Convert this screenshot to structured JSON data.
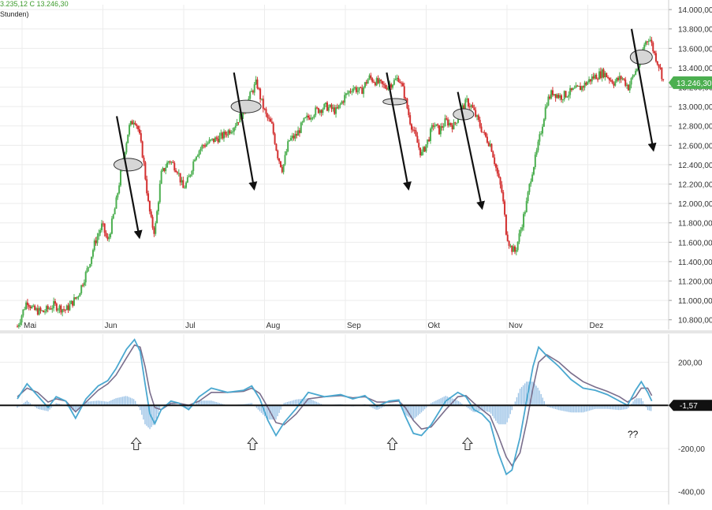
{
  "header": {
    "ohlc_text": "3.235,12  C  13.246,30",
    "interval_text": "Stunden)"
  },
  "colors": {
    "up": "#4caf50",
    "down": "#d32f2f",
    "price_badge": "#4caf50",
    "macd_line": "#4aa8d0",
    "signal_line": "#7a6e8c",
    "histogram": "#9cc3e6",
    "annotation": "#111111",
    "oval_fill": "#d6d6d6"
  },
  "chart_data": [
    {
      "type": "candlestick",
      "name": "price-panel",
      "x_tick_labels": [
        "Mai",
        "Jun",
        "Jul",
        "Aug",
        "Sep",
        "Okt",
        "Nov",
        "Dez"
      ],
      "y_ticks": [
        10800,
        11000,
        11200,
        11400,
        11600,
        11800,
        12000,
        12200,
        12400,
        12600,
        12800,
        13000,
        13200,
        13400,
        13600,
        13800,
        14000
      ],
      "y_tick_labels": [
        "10.800,00",
        "11.000,00",
        "11.200,00",
        "11.400,00",
        "11.600,00",
        "11.800,00",
        "12.000,00",
        "12.200,00",
        "12.400,00",
        "12.600,00",
        "12.800,00",
        "13.000,00",
        "13.200,00",
        "13.400,00",
        "13.600,00",
        "13.800,00",
        "14.000,00"
      ],
      "ylim": [
        10700,
        14050
      ],
      "xlim": [
        0,
        8.55
      ],
      "last_price": 13246.3,
      "last_price_label": "13.246,30",
      "grid": true,
      "series_close": [
        [
          0.0,
          10730
        ],
        [
          0.12,
          11000
        ],
        [
          0.2,
          10900
        ],
        [
          0.32,
          10880
        ],
        [
          0.45,
          10950
        ],
        [
          0.6,
          10900
        ],
        [
          0.75,
          11050
        ],
        [
          0.88,
          11350
        ],
        [
          0.96,
          11600
        ],
        [
          1.05,
          11780
        ],
        [
          1.12,
          11600
        ],
        [
          1.22,
          12000
        ],
        [
          1.3,
          12420
        ],
        [
          1.38,
          12780
        ],
        [
          1.45,
          12880
        ],
        [
          1.5,
          12750
        ],
        [
          1.56,
          12450
        ],
        [
          1.62,
          12000
        ],
        [
          1.66,
          11800
        ],
        [
          1.7,
          11700
        ],
        [
          1.78,
          12300
        ],
        [
          1.88,
          12450
        ],
        [
          1.98,
          12350
        ],
        [
          2.05,
          12150
        ],
        [
          2.12,
          12250
        ],
        [
          2.2,
          12500
        ],
        [
          2.3,
          12600
        ],
        [
          2.42,
          12650
        ],
        [
          2.55,
          12700
        ],
        [
          2.68,
          12800
        ],
        [
          2.8,
          12950
        ],
        [
          2.9,
          13150
        ],
        [
          2.96,
          13250
        ],
        [
          3.02,
          13050
        ],
        [
          3.08,
          12900
        ],
        [
          3.15,
          12800
        ],
        [
          3.22,
          12500
        ],
        [
          3.28,
          12350
        ],
        [
          3.36,
          12650
        ],
        [
          3.45,
          12700
        ],
        [
          3.55,
          12850
        ],
        [
          3.68,
          12950
        ],
        [
          3.82,
          13000
        ],
        [
          3.95,
          12950
        ],
        [
          4.05,
          13100
        ],
        [
          4.15,
          13200
        ],
        [
          4.25,
          13150
        ],
        [
          4.35,
          13300
        ],
        [
          4.45,
          13250
        ],
        [
          4.55,
          13200
        ],
        [
          4.65,
          13250
        ],
        [
          4.72,
          13300
        ],
        [
          4.78,
          13150
        ],
        [
          4.86,
          12850
        ],
        [
          4.92,
          12700
        ],
        [
          5.0,
          12500
        ],
        [
          5.08,
          12650
        ],
        [
          5.15,
          12820
        ],
        [
          5.22,
          12750
        ],
        [
          5.3,
          12850
        ],
        [
          5.4,
          12800
        ],
        [
          5.48,
          12950
        ],
        [
          5.56,
          13050
        ],
        [
          5.62,
          13000
        ],
        [
          5.7,
          12850
        ],
        [
          5.78,
          12700
        ],
        [
          5.86,
          12600
        ],
        [
          5.94,
          12300
        ],
        [
          6.0,
          12100
        ],
        [
          6.05,
          11700
        ],
        [
          6.1,
          11550
        ],
        [
          6.16,
          11500
        ],
        [
          6.22,
          11700
        ],
        [
          6.3,
          12000
        ],
        [
          6.36,
          12300
        ],
        [
          6.42,
          12500
        ],
        [
          6.48,
          12750
        ],
        [
          6.55,
          13050
        ],
        [
          6.62,
          13150
        ],
        [
          6.72,
          13100
        ],
        [
          6.85,
          13150
        ],
        [
          6.98,
          13200
        ],
        [
          7.12,
          13300
        ],
        [
          7.25,
          13350
        ],
        [
          7.38,
          13250
        ],
        [
          7.48,
          13300
        ],
        [
          7.56,
          13200
        ],
        [
          7.64,
          13350
        ],
        [
          7.7,
          13450
        ],
        [
          7.76,
          13650
        ],
        [
          7.82,
          13720
        ],
        [
          7.88,
          13550
        ],
        [
          7.95,
          13400
        ],
        [
          8.0,
          13246
        ]
      ]
    },
    {
      "type": "line",
      "name": "macd-panel",
      "x_tick_labels": [
        "Mai",
        "Jun",
        "Jul",
        "Aug",
        "Sep",
        "Okt",
        "Nov",
        "Dez"
      ],
      "y_ticks": [
        200,
        -200,
        -400
      ],
      "y_tick_labels": [
        "200,00",
        "-200,00",
        "-400,00"
      ],
      "zero_level": 0,
      "ylim": [
        -460,
        330
      ],
      "current_value_label": "-1,57",
      "series": [
        {
          "values": [
            [
              0.0,
              30
            ],
            [
              0.12,
              100
            ],
            [
              0.25,
              45
            ],
            [
              0.38,
              -10
            ],
            [
              0.48,
              40
            ],
            [
              0.6,
              20
            ],
            [
              0.72,
              -60
            ],
            [
              0.85,
              30
            ],
            [
              1.0,
              90
            ],
            [
              1.12,
              115
            ],
            [
              1.22,
              170
            ],
            [
              1.35,
              260
            ],
            [
              1.45,
              305
            ],
            [
              1.52,
              250
            ],
            [
              1.58,
              100
            ],
            [
              1.64,
              -40
            ],
            [
              1.7,
              -85
            ],
            [
              1.78,
              -20
            ],
            [
              1.9,
              20
            ],
            [
              2.0,
              10
            ],
            [
              2.12,
              -20
            ],
            [
              2.25,
              40
            ],
            [
              2.4,
              80
            ],
            [
              2.6,
              60
            ],
            [
              2.8,
              70
            ],
            [
              2.9,
              90
            ],
            [
              3.0,
              30
            ],
            [
              3.1,
              -70
            ],
            [
              3.2,
              -140
            ],
            [
              3.3,
              -80
            ],
            [
              3.45,
              -15
            ],
            [
              3.6,
              60
            ],
            [
              3.8,
              40
            ],
            [
              4.0,
              50
            ],
            [
              4.15,
              30
            ],
            [
              4.3,
              45
            ],
            [
              4.45,
              -5
            ],
            [
              4.6,
              20
            ],
            [
              4.72,
              25
            ],
            [
              4.8,
              -50
            ],
            [
              4.9,
              -130
            ],
            [
              5.0,
              -140
            ],
            [
              5.12,
              -90
            ],
            [
              5.3,
              20
            ],
            [
              5.45,
              60
            ],
            [
              5.55,
              40
            ],
            [
              5.65,
              -20
            ],
            [
              5.75,
              -40
            ],
            [
              5.85,
              -80
            ],
            [
              5.95,
              -220
            ],
            [
              6.05,
              -320
            ],
            [
              6.12,
              -300
            ],
            [
              6.22,
              -150
            ],
            [
              6.3,
              20
            ],
            [
              6.38,
              180
            ],
            [
              6.45,
              270
            ],
            [
              6.55,
              230
            ],
            [
              6.7,
              180
            ],
            [
              6.85,
              120
            ],
            [
              7.0,
              80
            ],
            [
              7.15,
              70
            ],
            [
              7.3,
              50
            ],
            [
              7.45,
              20
            ],
            [
              7.55,
              0
            ],
            [
              7.65,
              70
            ],
            [
              7.72,
              110
            ],
            [
              7.8,
              60
            ],
            [
              7.85,
              20
            ]
          ]
        },
        {
          "values": [
            [
              0.0,
              40
            ],
            [
              0.12,
              80
            ],
            [
              0.25,
              60
            ],
            [
              0.38,
              15
            ],
            [
              0.48,
              30
            ],
            [
              0.6,
              20
            ],
            [
              0.72,
              -30
            ],
            [
              0.85,
              15
            ],
            [
              1.0,
              70
            ],
            [
              1.12,
              100
            ],
            [
              1.22,
              140
            ],
            [
              1.35,
              220
            ],
            [
              1.45,
              280
            ],
            [
              1.52,
              270
            ],
            [
              1.58,
              180
            ],
            [
              1.64,
              60
            ],
            [
              1.7,
              -10
            ],
            [
              1.78,
              -20
            ],
            [
              1.9,
              10
            ],
            [
              2.0,
              10
            ],
            [
              2.12,
              0
            ],
            [
              2.25,
              20
            ],
            [
              2.4,
              60
            ],
            [
              2.6,
              60
            ],
            [
              2.8,
              65
            ],
            [
              2.9,
              80
            ],
            [
              3.0,
              55
            ],
            [
              3.1,
              -10
            ],
            [
              3.2,
              -80
            ],
            [
              3.3,
              -90
            ],
            [
              3.45,
              -40
            ],
            [
              3.6,
              30
            ],
            [
              3.8,
              40
            ],
            [
              4.0,
              45
            ],
            [
              4.15,
              35
            ],
            [
              4.3,
              40
            ],
            [
              4.45,
              15
            ],
            [
              4.6,
              15
            ],
            [
              4.72,
              20
            ],
            [
              4.8,
              -10
            ],
            [
              4.9,
              -70
            ],
            [
              5.0,
              -110
            ],
            [
              5.12,
              -100
            ],
            [
              5.3,
              -20
            ],
            [
              5.45,
              40
            ],
            [
              5.55,
              45
            ],
            [
              5.65,
              10
            ],
            [
              5.75,
              -20
            ],
            [
              5.85,
              -50
            ],
            [
              5.95,
              -140
            ],
            [
              6.05,
              -240
            ],
            [
              6.12,
              -280
            ],
            [
              6.22,
              -220
            ],
            [
              6.3,
              -80
            ],
            [
              6.38,
              80
            ],
            [
              6.45,
              200
            ],
            [
              6.55,
              235
            ],
            [
              6.7,
              200
            ],
            [
              6.85,
              150
            ],
            [
              7.0,
              110
            ],
            [
              7.15,
              85
            ],
            [
              7.3,
              65
            ],
            [
              7.45,
              40
            ],
            [
              7.55,
              15
            ],
            [
              7.65,
              40
            ],
            [
              7.72,
              80
            ],
            [
              7.8,
              80
            ],
            [
              7.85,
              45
            ]
          ]
        }
      ]
    }
  ],
  "annotations": {
    "question_marks": "??"
  }
}
